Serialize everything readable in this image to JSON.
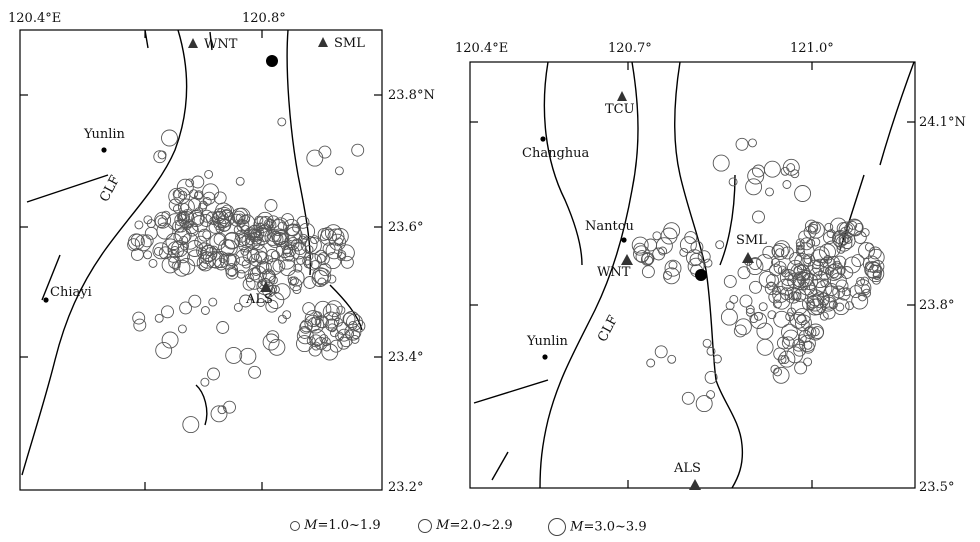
{
  "left_map": {
    "top_ticks": [
      "120.4°E",
      "120.8°"
    ],
    "right_ticks": [
      "23.8°N",
      "23.6°",
      "23.4°",
      "23.2°"
    ],
    "stations": [
      "WNT",
      "SML",
      "ALS"
    ],
    "places": [
      "Yunlin",
      "Chiayi"
    ],
    "fault_label": "CLF"
  },
  "right_map": {
    "top_ticks": [
      "120.4°E",
      "120.7°",
      "121.0°"
    ],
    "right_ticks": [
      "24.1°N",
      "23.8°",
      "23.5°"
    ],
    "stations": [
      "TCU",
      "WNT",
      "SML",
      "ALS"
    ],
    "places": [
      "Changhua",
      "Nantou",
      "Yunlin"
    ],
    "fault_label": "CLF"
  },
  "legend": {
    "m_symbol": "M",
    "small": "=1.0~1.9",
    "medium": "=2.0~2.9",
    "large": "=3.0~3.9"
  }
}
